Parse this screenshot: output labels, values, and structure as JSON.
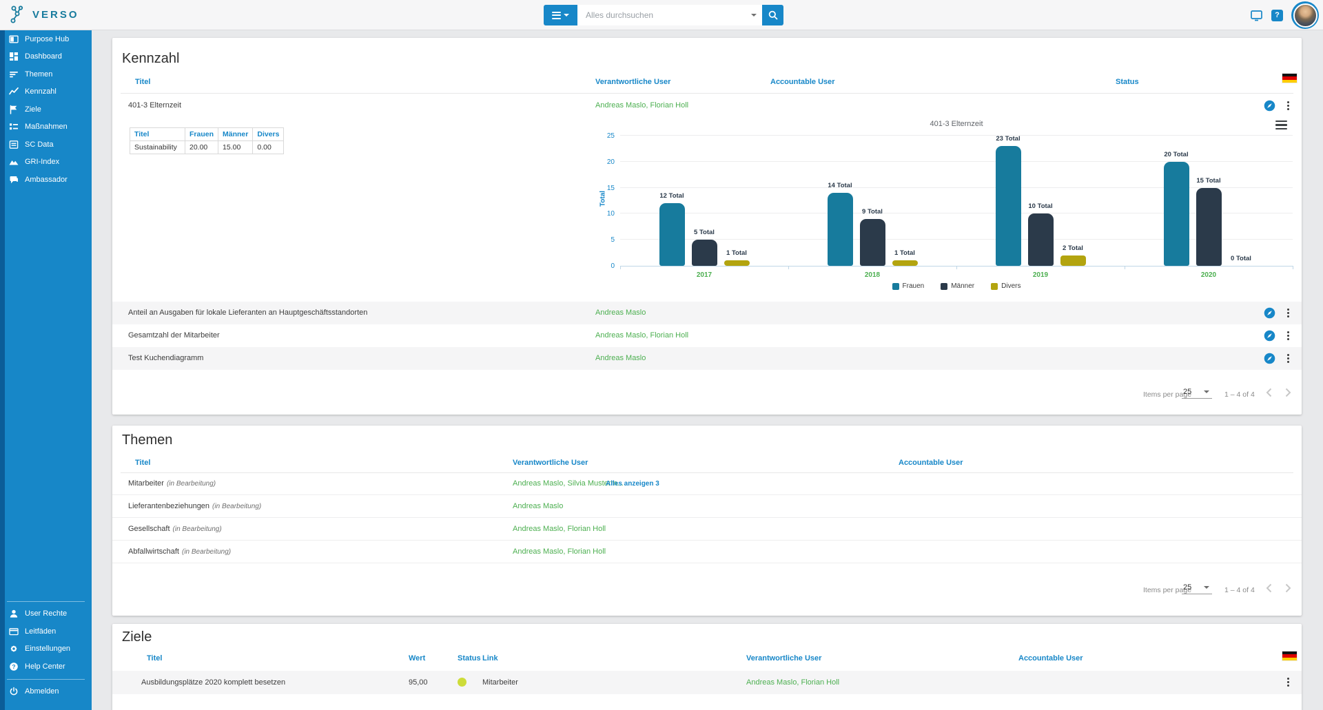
{
  "colors": {
    "accent": "#1787C8",
    "green": "#4CAF50",
    "teal": "#177B9D",
    "navy": "#2B3A4A",
    "olive": "#B3A40F",
    "status_yellow_green": "#CDDC39"
  },
  "topbar": {
    "brand": "VERSO",
    "search_placeholder": "Alles durchsuchen"
  },
  "sidebar": {
    "items": [
      {
        "icon": "book-icon",
        "label": "Purpose Hub"
      },
      {
        "icon": "dashboard-icon",
        "label": "Dashboard"
      },
      {
        "icon": "filter-lines-icon",
        "label": "Themen"
      },
      {
        "icon": "line-chart-icon",
        "label": "Kennzahl"
      },
      {
        "icon": "flag-icon",
        "label": "Ziele"
      },
      {
        "icon": "list-icon",
        "label": "Maßnahmen"
      },
      {
        "icon": "document-icon",
        "label": "SC Data"
      },
      {
        "icon": "mountains-icon",
        "label": "GRI-Index"
      },
      {
        "icon": "chat-icon",
        "label": "Ambassador"
      }
    ],
    "footer_items": [
      {
        "icon": "person-icon",
        "label": "User Rechte"
      },
      {
        "icon": "card-icon",
        "label": "Leitfäden"
      },
      {
        "icon": "gear-icon",
        "label": "Einstellungen"
      },
      {
        "icon": "help-icon",
        "label": "Help Center"
      },
      {
        "icon": "power-icon",
        "label": "Abmelden"
      }
    ]
  },
  "kennzahl": {
    "title": "Kennzahl",
    "headers": {
      "titel": "Titel",
      "verantwortlich": "Verantwortliche User",
      "accountable": "Accountable User",
      "status": "Status"
    },
    "detail_table": {
      "headers": [
        "Titel",
        "Frauen",
        "Männer",
        "Divers"
      ],
      "row": [
        "Sustainability",
        "20.00",
        "15.00",
        "0.00"
      ]
    },
    "rows": [
      {
        "titel": "401-3 Elternzeit",
        "verantwortlich": "Andreas Maslo, Florian Holl"
      },
      {
        "titel": "Anteil an Ausgaben für lokale Lieferanten an Hauptgeschäftsstandorten",
        "verantwortlich": "Andreas Maslo"
      },
      {
        "titel": "Gesamtzahl der Mitarbeiter",
        "verantwortlich": "Andreas Maslo, Florian Holl"
      },
      {
        "titel": "Test Kuchendiagramm",
        "verantwortlich": "Andreas Maslo"
      }
    ],
    "pagination": {
      "label": "Items per page",
      "page_size": "25",
      "range": "1 – 4 of 4"
    }
  },
  "chart_data": {
    "type": "bar",
    "title": "401-3 Elternzeit",
    "ylabel": "Total",
    "ylim": [
      0,
      25
    ],
    "yticks": [
      0,
      5,
      10,
      15,
      20,
      25
    ],
    "categories": [
      "2017",
      "2018",
      "2019",
      "2020"
    ],
    "series": [
      {
        "name": "Frauen",
        "color": "#177B9D",
        "values": [
          12,
          14,
          23,
          20
        ]
      },
      {
        "name": "Männer",
        "color": "#2B3A4A",
        "values": [
          5,
          9,
          10,
          15
        ]
      },
      {
        "name": "Divers",
        "color": "#B3A40F",
        "values": [
          1,
          1,
          2,
          0
        ]
      }
    ],
    "label_suffix": " Total",
    "grid": true,
    "legend_position": "bottom"
  },
  "themen": {
    "title": "Themen",
    "headers": {
      "titel": "Titel",
      "verantwortlich": "Verantwortliche User",
      "accountable": "Accountable User"
    },
    "rows": [
      {
        "titel": "Mitarbeiter",
        "state": "(in Bearbeitung)",
        "verantwortlich": "Andreas Maslo, Silvia Musterm...",
        "more": "Alles anzeigen 3"
      },
      {
        "titel": "Lieferantenbeziehungen",
        "state": "(in Bearbeitung)",
        "verantwortlich": "Andreas Maslo",
        "more": ""
      },
      {
        "titel": "Gesellschaft",
        "state": "(in Bearbeitung)",
        "verantwortlich": "Andreas Maslo, Florian Holl",
        "more": ""
      },
      {
        "titel": "Abfallwirtschaft",
        "state": "(in Bearbeitung)",
        "verantwortlich": "Andreas Maslo, Florian Holl",
        "more": ""
      }
    ],
    "pagination": {
      "label": "Items per page",
      "page_size": "25",
      "range": "1 – 4 of 4"
    }
  },
  "ziele": {
    "title": "Ziele",
    "headers": {
      "titel": "Titel",
      "wert": "Wert",
      "status": "Status",
      "link": "Link",
      "verantwortlich": "Verantwortliche User",
      "accountable": "Accountable User"
    },
    "rows": [
      {
        "titel": "Ausbildungsplätze 2020 komplett besetzen",
        "wert": "95,00",
        "status_color": "#CDDC39",
        "link": "Mitarbeiter",
        "verantwortlich": "Andreas Maslo, Florian Holl"
      }
    ]
  }
}
